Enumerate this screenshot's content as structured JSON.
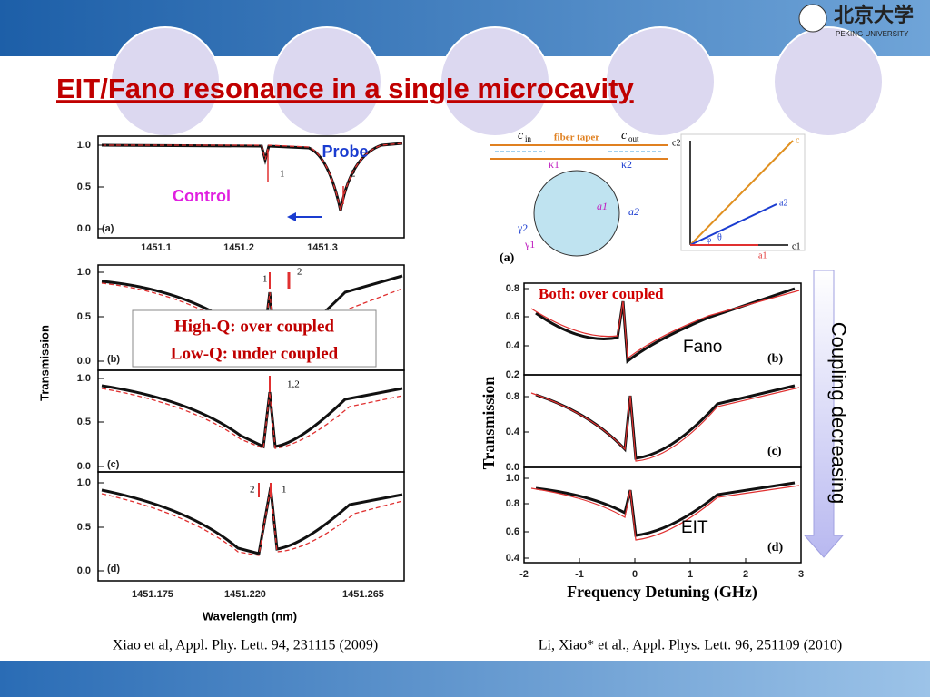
{
  "header": {
    "title": "EIT/Fano resonance in a single microcavity",
    "logo": "北京大学",
    "logo_sub": "PEKING UNIVERSITY"
  },
  "left_figure": {
    "panels": [
      {
        "label": "(a)",
        "yticks": [
          "1.0",
          "0.5",
          "0.0"
        ],
        "markers": [
          "1",
          "2"
        ]
      },
      {
        "label": "(b)",
        "yticks": [
          "1.0",
          "0.5",
          "0.0"
        ],
        "markers": [
          "1",
          "2"
        ]
      },
      {
        "label": "(c)",
        "yticks": [
          "1.0",
          "0.5",
          "0.0"
        ],
        "markers": [
          "1,2"
        ]
      },
      {
        "label": "(d)",
        "yticks": [
          "1.0",
          "0.5",
          "0.0"
        ],
        "markers": [
          "2",
          "1"
        ]
      }
    ],
    "xticks_top": [
      "1451.1",
      "1451.2",
      "1451.3"
    ],
    "xticks_bottom": [
      "1451.175",
      "1451.220",
      "1451.265"
    ],
    "xlabel": "Wavelength (nm)",
    "ylabel": "Transmission",
    "probe": "Probe",
    "control": "Control",
    "note": [
      "High-Q: over coupled",
      "Low-Q: under coupled"
    ],
    "citation": "Xiao et al, Appl. Phy. Lett. 94, 231115 (2009)"
  },
  "schematic": {
    "label": "(a)",
    "c_in": "c",
    "c_in_sub": "in",
    "taper": "fiber taper",
    "c_out": "c",
    "c_out_sub": "out",
    "kappa1": "κ1",
    "kappa2": "κ2",
    "a1": "a1",
    "a2": "a2",
    "gamma1": "γ1",
    "gamma2": "γ2",
    "vec_c2": "c2",
    "vec_c": "c",
    "vec_a2": "a2",
    "vec_c1": "c1",
    "vec_a1": "a1",
    "theta": "θ",
    "phi": "φ"
  },
  "right_figure": {
    "panels": [
      {
        "label": "(b)",
        "yticks": [
          "0.8",
          "0.6",
          "0.4",
          "0.2"
        ]
      },
      {
        "label": "(c)",
        "yticks": [
          "0.8",
          "0.4",
          "0.0"
        ]
      },
      {
        "label": "(d)",
        "yticks": [
          "1.0",
          "0.8",
          "0.6",
          "0.4"
        ]
      }
    ],
    "xticks": [
      "-2",
      "-1",
      "0",
      "1",
      "2",
      "3"
    ],
    "xlabel": "Frequency Detuning (GHz)",
    "ylabel": "Transmission",
    "note": "Both: over coupled",
    "fano": "Fano",
    "eit": "EIT",
    "citation": "Li, Xiao* et al., Appl. Phys. Lett. 96, 251109 (2010)"
  },
  "arrow_label": "Coupling decreasing"
}
